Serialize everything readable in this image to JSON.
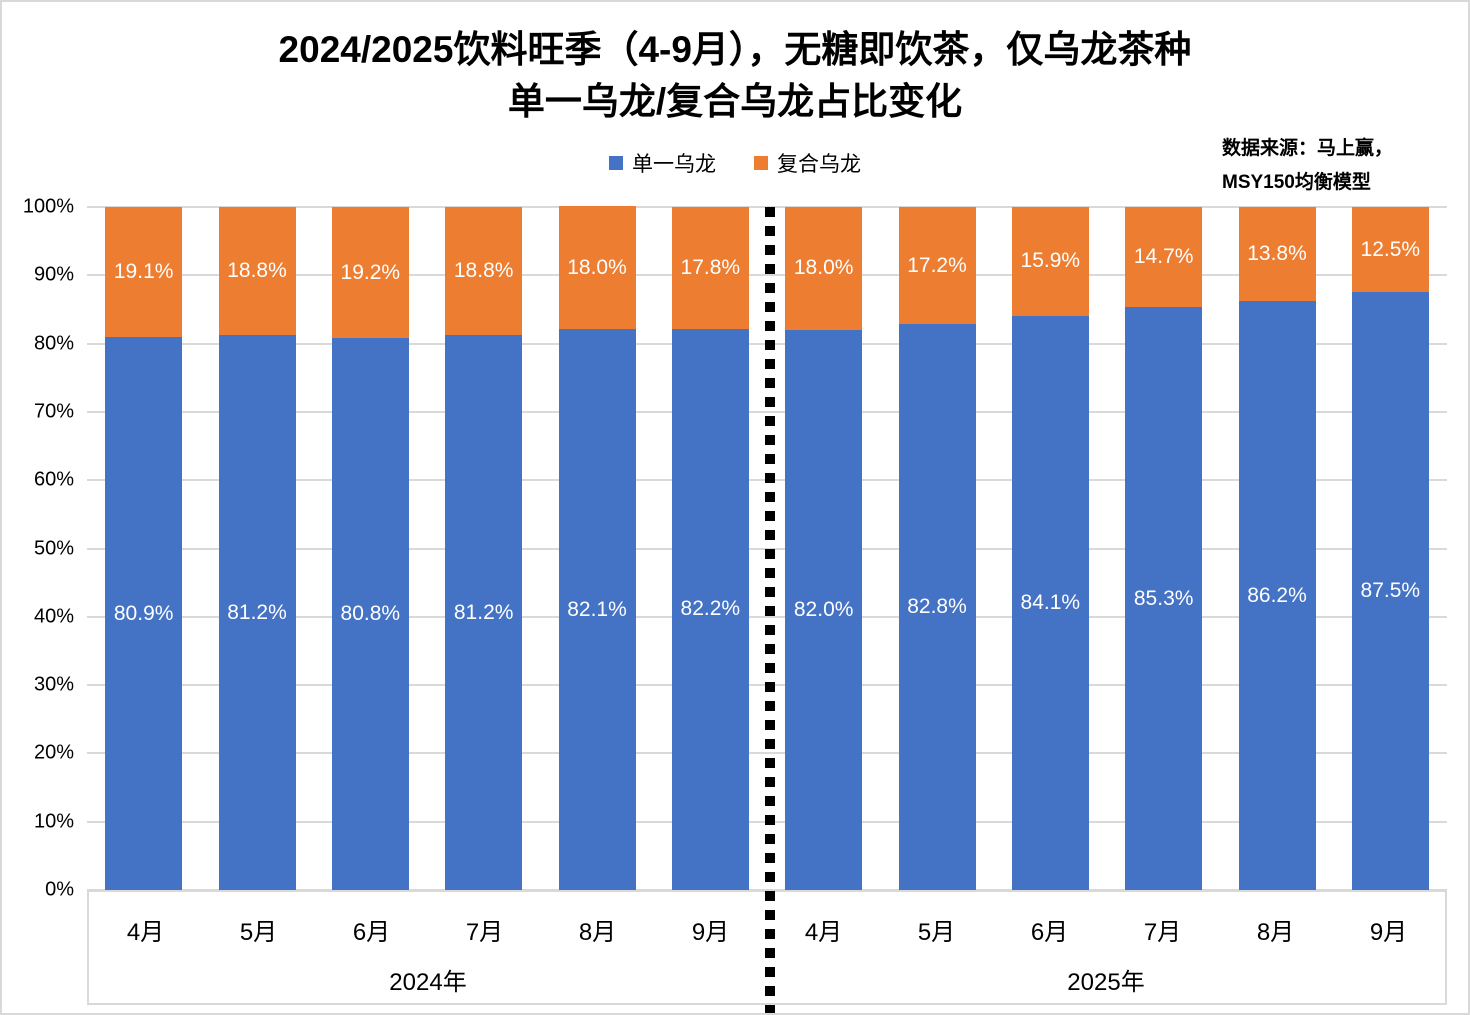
{
  "title": {
    "line1": "2024/2025饮料旺季（4-9月），无糖即饮茶，仅乌龙茶种",
    "line2": "单一乌龙/复合乌龙占比变化"
  },
  "source": {
    "line1": "数据来源：马上赢，",
    "line2": "MSY150均衡模型"
  },
  "legend": [
    {
      "label": "单一乌龙",
      "color": "#4472C4"
    },
    {
      "label": "复合乌龙",
      "color": "#ED7D31"
    }
  ],
  "colors": {
    "blue": "#4472C4",
    "orange": "#ED7D31",
    "gridline": "#D9D9D9",
    "separator": "#000000",
    "value_label": "#FFFFFF"
  },
  "chart_data": {
    "type": "bar",
    "stacked": true,
    "title": "2024/2025饮料旺季（4-9月），无糖即饮茶，仅乌龙茶种 单一乌龙/复合乌龙占比变化",
    "categories": [
      "4月",
      "5月",
      "6月",
      "7月",
      "8月",
      "9月",
      "4月",
      "5月",
      "6月",
      "7月",
      "8月",
      "9月"
    ],
    "group_labels": [
      "2024年",
      "2025年"
    ],
    "series": [
      {
        "name": "单一乌龙",
        "color": "#4472C4",
        "values": [
          80.9,
          81.2,
          80.8,
          81.2,
          82.1,
          82.2,
          82.0,
          82.8,
          84.1,
          85.3,
          86.2,
          87.5
        ]
      },
      {
        "name": "复合乌龙",
        "color": "#ED7D31",
        "values": [
          19.1,
          18.8,
          19.2,
          18.8,
          18.0,
          17.8,
          18.0,
          17.2,
          15.9,
          14.7,
          13.8,
          12.5
        ]
      }
    ],
    "ylim": [
      0,
      100
    ],
    "yticks": [
      "0%",
      "10%",
      "20%",
      "30%",
      "40%",
      "50%",
      "60%",
      "70%",
      "80%",
      "90%",
      "100%"
    ],
    "grid": true,
    "legend_position": "top",
    "separator_after_index": 5,
    "value_label_format": "one-decimal-percent"
  }
}
